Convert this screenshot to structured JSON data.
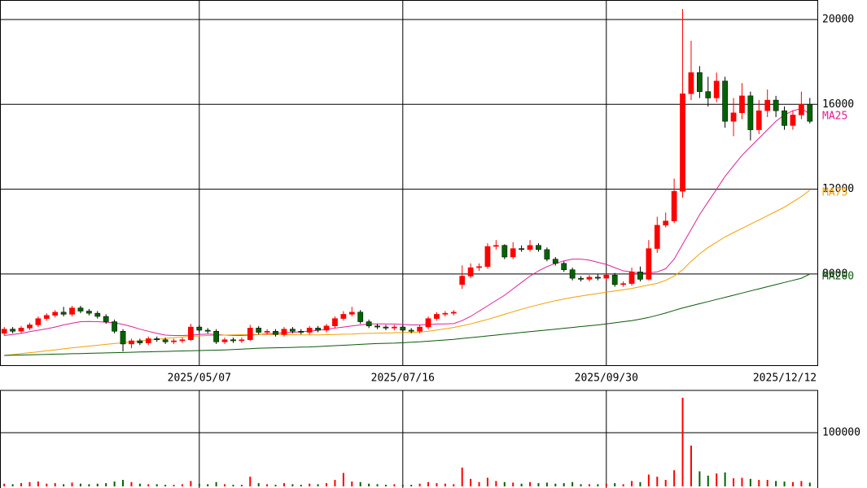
{
  "chart_data": {
    "type": "candlestick",
    "categories": [
      null,
      null,
      null,
      null,
      null,
      null,
      null,
      null,
      null,
      null,
      null,
      null,
      null,
      null,
      null,
      null,
      null,
      null,
      null,
      null,
      null,
      null,
      null,
      "2025/05/07",
      null,
      null,
      null,
      null,
      null,
      null,
      null,
      null,
      null,
      null,
      null,
      null,
      null,
      null,
      null,
      null,
      null,
      null,
      null,
      null,
      null,
      null,
      null,
      "2025/07/16",
      null,
      null,
      null,
      null,
      null,
      null,
      null,
      null,
      null,
      null,
      null,
      null,
      null,
      null,
      null,
      null,
      null,
      null,
      null,
      null,
      null,
      null,
      null,
      "2025/09/30",
      null,
      null,
      null,
      null,
      null,
      null,
      null,
      null,
      null,
      null,
      null,
      null,
      null,
      null,
      null,
      null,
      null,
      null,
      null,
      null,
      null,
      null,
      null,
      "2025/12/12"
    ],
    "open": [
      5200,
      5400,
      5300,
      5450,
      5600,
      5900,
      6050,
      6200,
      6100,
      6400,
      6250,
      6150,
      6000,
      5750,
      5300,
      4700,
      4850,
      4750,
      4950,
      4900,
      4800,
      4850,
      4900,
      5500,
      5350,
      5300,
      4800,
      4900,
      4850,
      4900,
      5450,
      5250,
      5300,
      5150,
      5400,
      5300,
      5250,
      5450,
      5350,
      5550,
      5900,
      6100,
      6200,
      5750,
      5550,
      5500,
      5450,
      5500,
      5350,
      5300,
      5500,
      5900,
      6100,
      6150,
      7500,
      7900,
      8300,
      8350,
      9300,
      9350,
      8800,
      9200,
      9150,
      9350,
      9150,
      8700,
      8500,
      8200,
      7800,
      7750,
      7850,
      7800,
      7950,
      7500,
      7550,
      8100,
      7750,
      9200,
      10300,
      10500,
      11900,
      16500,
      17500,
      16600,
      16300,
      17100,
      15200,
      15600,
      16400,
      14800,
      15700,
      16200,
      15700,
      15000,
      15500,
      16000
    ],
    "high": [
      5500,
      5500,
      5550,
      5700,
      6000,
      6150,
      6300,
      6450,
      6500,
      6500,
      6350,
      6250,
      6100,
      5850,
      5400,
      4950,
      4950,
      5050,
      5050,
      5000,
      4950,
      5000,
      5650,
      5600,
      5450,
      5400,
      5000,
      5000,
      5000,
      5600,
      5550,
      5400,
      5400,
      5500,
      5500,
      5400,
      5550,
      5550,
      5650,
      6000,
      6250,
      6450,
      6300,
      5850,
      5650,
      5600,
      5600,
      5600,
      5450,
      5600,
      6000,
      6200,
      6250,
      6300,
      8400,
      8500,
      8500,
      9450,
      9600,
      9400,
      9500,
      9350,
      9600,
      9450,
      9250,
      8800,
      8600,
      8300,
      7900,
      7950,
      8000,
      8050,
      8050,
      7650,
      8300,
      8350,
      9600,
      10700,
      10900,
      12500,
      20500,
      19000,
      17800,
      17300,
      17500,
      17300,
      16300,
      17000,
      16600,
      16200,
      16700,
      16400,
      15900,
      15700,
      16600,
      16300
    ],
    "low": [
      5100,
      5200,
      5200,
      5350,
      5500,
      5800,
      5950,
      6000,
      6000,
      6150,
      6050,
      5900,
      5650,
      5200,
      4350,
      4500,
      4650,
      4650,
      4800,
      4700,
      4700,
      4750,
      4850,
      5250,
      5200,
      4700,
      4700,
      4750,
      4750,
      4850,
      5150,
      5150,
      5050,
      5050,
      5200,
      5150,
      5150,
      5250,
      5250,
      5450,
      5800,
      6000,
      5650,
      5450,
      5400,
      5350,
      5350,
      5250,
      5200,
      5200,
      5400,
      5800,
      6000,
      6050,
      7300,
      7800,
      8150,
      8250,
      9150,
      8700,
      8700,
      9050,
      9050,
      9050,
      8600,
      8400,
      8100,
      7700,
      7650,
      7650,
      7700,
      7700,
      7400,
      7400,
      7450,
      7650,
      7700,
      9000,
      10200,
      10400,
      11600,
      16200,
      16300,
      15900,
      16100,
      14900,
      14500,
      15300,
      14300,
      14600,
      15400,
      15400,
      14800,
      14800,
      15300,
      15100
    ],
    "close": [
      5400,
      5300,
      5450,
      5600,
      5900,
      6050,
      6200,
      6100,
      6400,
      6250,
      6150,
      6000,
      5750,
      5300,
      4700,
      4850,
      4750,
      4950,
      4900,
      4800,
      4850,
      4900,
      5500,
      5350,
      5300,
      4800,
      4900,
      4850,
      4900,
      5450,
      5250,
      5300,
      5150,
      5400,
      5300,
      5250,
      5450,
      5350,
      5550,
      5900,
      6100,
      6200,
      5750,
      5550,
      5500,
      5450,
      5500,
      5350,
      5300,
      5500,
      5900,
      6100,
      6150,
      6200,
      7900,
      8300,
      8350,
      9300,
      9350,
      8800,
      9200,
      9150,
      9350,
      9150,
      8700,
      8500,
      8200,
      7800,
      7750,
      7850,
      7800,
      7950,
      7500,
      7550,
      8100,
      7750,
      9200,
      10300,
      10500,
      11900,
      16500,
      17500,
      16600,
      16300,
      17100,
      15200,
      15600,
      16400,
      14800,
      15700,
      16200,
      15700,
      15000,
      15500,
      16000,
      15200
    ],
    "colors": {
      "up": "#ff0000",
      "down": "#006400"
    },
    "ylim": [
      3700,
      20920
    ],
    "yticks": [
      8000,
      12000,
      16000,
      20000
    ],
    "grid": true,
    "legend": "right",
    "series": [
      {
        "name": "MA25",
        "color": "#e0219a",
        "values": [
          5100,
          5150,
          5200,
          5280,
          5350,
          5420,
          5500,
          5600,
          5680,
          5750,
          5760,
          5750,
          5730,
          5700,
          5620,
          5520,
          5400,
          5300,
          5200,
          5120,
          5100,
          5100,
          5120,
          5150,
          5170,
          5150,
          5120,
          5100,
          5100,
          5120,
          5150,
          5180,
          5200,
          5230,
          5250,
          5280,
          5300,
          5350,
          5400,
          5450,
          5500,
          5550,
          5600,
          5650,
          5650,
          5650,
          5640,
          5620,
          5600,
          5600,
          5620,
          5640,
          5650,
          5660,
          5800,
          6000,
          6250,
          6500,
          6750,
          7000,
          7300,
          7600,
          7900,
          8150,
          8350,
          8500,
          8620,
          8700,
          8700,
          8650,
          8550,
          8450,
          8300,
          8150,
          8100,
          8050,
          8050,
          8100,
          8250,
          8700,
          9400,
          10100,
          10800,
          11400,
          12000,
          12600,
          13100,
          13600,
          14000,
          14400,
          14800,
          15200,
          15500,
          15700,
          15800,
          15550
        ]
      },
      {
        "name": "MA75",
        "color": "#f5a000",
        "values": [
          4160,
          4200,
          4250,
          4290,
          4330,
          4380,
          4420,
          4470,
          4520,
          4560,
          4600,
          4640,
          4680,
          4720,
          4760,
          4800,
          4840,
          4880,
          4920,
          4960,
          5000,
          5030,
          5060,
          5080,
          5100,
          5110,
          5120,
          5130,
          5140,
          5150,
          5150,
          5150,
          5150,
          5140,
          5140,
          5130,
          5130,
          5130,
          5140,
          5150,
          5160,
          5170,
          5190,
          5200,
          5210,
          5220,
          5230,
          5240,
          5250,
          5260,
          5300,
          5360,
          5420,
          5480,
          5560,
          5650,
          5750,
          5860,
          5980,
          6100,
          6220,
          6340,
          6450,
          6550,
          6650,
          6740,
          6820,
          6900,
          6960,
          7020,
          7080,
          7140,
          7200,
          7260,
          7320,
          7400,
          7480,
          7560,
          7700,
          7900,
          8200,
          8600,
          8950,
          9250,
          9500,
          9750,
          9950,
          10150,
          10350,
          10550,
          10750,
          10950,
          11150,
          11400,
          11650,
          11950
        ]
      },
      {
        "name": "MA200",
        "color": "#0a5a0a",
        "values": [
          4160,
          4170,
          4180,
          4190,
          4200,
          4210,
          4220,
          4230,
          4240,
          4250,
          4260,
          4270,
          4280,
          4290,
          4300,
          4310,
          4320,
          4330,
          4340,
          4350,
          4360,
          4370,
          4380,
          4390,
          4400,
          4410,
          4420,
          4440,
          4460,
          4480,
          4500,
          4510,
          4520,
          4530,
          4540,
          4550,
          4560,
          4580,
          4600,
          4620,
          4640,
          4660,
          4680,
          4700,
          4720,
          4730,
          4740,
          4760,
          4780,
          4800,
          4830,
          4860,
          4890,
          4920,
          4960,
          5000,
          5040,
          5080,
          5120,
          5160,
          5200,
          5240,
          5280,
          5320,
          5360,
          5400,
          5440,
          5480,
          5520,
          5560,
          5600,
          5650,
          5700,
          5750,
          5800,
          5870,
          5950,
          6050,
          6160,
          6280,
          6400,
          6500,
          6600,
          6700,
          6800,
          6900,
          7000,
          7100,
          7200,
          7300,
          7400,
          7500,
          7600,
          7700,
          7800,
          8000
        ]
      }
    ],
    "volume": {
      "values": [
        5000,
        4000,
        6000,
        8000,
        9000,
        5000,
        6000,
        4000,
        7000,
        5000,
        4000,
        5000,
        6000,
        9000,
        12000,
        8000,
        5000,
        4000,
        4000,
        3000,
        3000,
        4000,
        10000,
        5000,
        4000,
        8000,
        4000,
        3000,
        3000,
        18000,
        6000,
        4000,
        3000,
        6000,
        4000,
        3000,
        5000,
        4000,
        6000,
        12000,
        25000,
        9000,
        8000,
        5000,
        4000,
        3000,
        4000,
        3000,
        3000,
        5000,
        8000,
        6000,
        5000,
        4000,
        35000,
        14000,
        8000,
        16000,
        10000,
        8000,
        7000,
        5000,
        8000,
        6000,
        7000,
        5000,
        6000,
        8000,
        4000,
        4000,
        4000,
        5000,
        6000,
        4000,
        10000,
        8000,
        22000,
        18000,
        12000,
        30000,
        165000,
        76000,
        28000,
        20000,
        24000,
        26000,
        15000,
        16000,
        14000,
        12000,
        12000,
        10000,
        9000,
        8000,
        10000,
        7000
      ],
      "ylim": [
        0,
        178800
      ],
      "yticks": [
        100000
      ]
    }
  }
}
